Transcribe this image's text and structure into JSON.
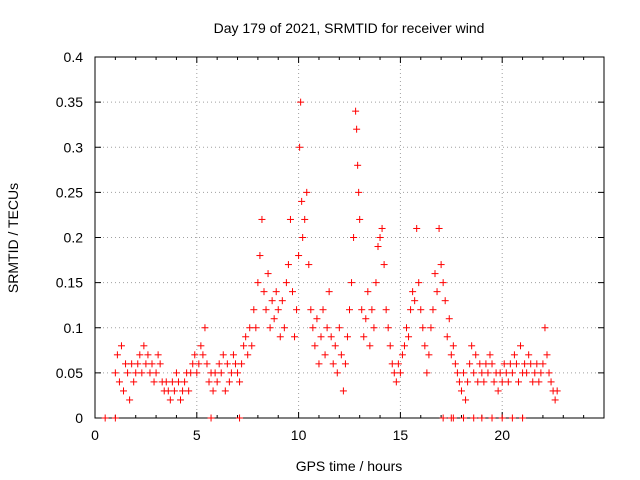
{
  "chart_data": {
    "type": "scatter",
    "title": "Day 179 of 2021, SRMTID for receiver wind",
    "xlabel": "GPS time / hours",
    "ylabel": "SRMTID / TECUs",
    "xlim": [
      0,
      25
    ],
    "ylim": [
      0,
      0.4
    ],
    "xticks": [
      0,
      5,
      10,
      15,
      20
    ],
    "yticks": [
      0,
      0.05,
      0.1,
      0.15,
      0.2,
      0.25,
      0.3,
      0.35,
      0.4
    ],
    "xtick_labels": [
      "0",
      "5",
      "10",
      "15",
      "20"
    ],
    "ytick_labels": [
      "0",
      "0.05",
      "0.1",
      "0.15",
      "0.2",
      "0.25",
      "0.3",
      "0.35",
      "0.4"
    ],
    "grid": true,
    "marker": "plus",
    "color": "#ff0000",
    "series": [
      {
        "points": [
          [
            0.5,
            0.0
          ],
          [
            1.0,
            0.0
          ],
          [
            5.7,
            0.0
          ],
          [
            7.1,
            0.0
          ],
          [
            17.1,
            0.0
          ],
          [
            17.5,
            0.0
          ],
          [
            17.6,
            0.0
          ],
          [
            18.1,
            0.0
          ],
          [
            18.6,
            0.0
          ],
          [
            19.0,
            0.0
          ],
          [
            19.5,
            0.0
          ],
          [
            20.0,
            0.0
          ],
          [
            20.5,
            0.0
          ],
          [
            21.0,
            0.0
          ],
          [
            1.0,
            0.05
          ],
          [
            1.1,
            0.07
          ],
          [
            1.2,
            0.04
          ],
          [
            1.3,
            0.08
          ],
          [
            1.4,
            0.03
          ],
          [
            1.5,
            0.06
          ],
          [
            1.6,
            0.05
          ],
          [
            1.7,
            0.02
          ],
          [
            1.8,
            0.06
          ],
          [
            1.9,
            0.04
          ],
          [
            2.0,
            0.05
          ],
          [
            2.1,
            0.06
          ],
          [
            2.2,
            0.07
          ],
          [
            2.3,
            0.05
          ],
          [
            2.4,
            0.08
          ],
          [
            2.5,
            0.06
          ],
          [
            2.6,
            0.07
          ],
          [
            2.7,
            0.05
          ],
          [
            2.8,
            0.06
          ],
          [
            2.9,
            0.04
          ],
          [
            3.0,
            0.05
          ],
          [
            3.1,
            0.07
          ],
          [
            3.2,
            0.06
          ],
          [
            3.3,
            0.04
          ],
          [
            3.4,
            0.03
          ],
          [
            3.5,
            0.04
          ],
          [
            3.6,
            0.03
          ],
          [
            3.7,
            0.02
          ],
          [
            3.8,
            0.04
          ],
          [
            3.9,
            0.03
          ],
          [
            4.0,
            0.05
          ],
          [
            4.1,
            0.04
          ],
          [
            4.2,
            0.02
          ],
          [
            4.3,
            0.03
          ],
          [
            4.4,
            0.04
          ],
          [
            4.5,
            0.05
          ],
          [
            4.6,
            0.03
          ],
          [
            4.7,
            0.05
          ],
          [
            4.8,
            0.06
          ],
          [
            4.9,
            0.07
          ],
          [
            5.0,
            0.05
          ],
          [
            5.1,
            0.06
          ],
          [
            5.2,
            0.08
          ],
          [
            5.3,
            0.07
          ],
          [
            5.4,
            0.1
          ],
          [
            5.5,
            0.06
          ],
          [
            5.6,
            0.04
          ],
          [
            5.7,
            0.05
          ],
          [
            5.8,
            0.03
          ],
          [
            5.9,
            0.05
          ],
          [
            6.0,
            0.04
          ],
          [
            6.1,
            0.06
          ],
          [
            6.2,
            0.05
          ],
          [
            6.3,
            0.07
          ],
          [
            6.4,
            0.03
          ],
          [
            6.5,
            0.06
          ],
          [
            6.6,
            0.04
          ],
          [
            6.7,
            0.05
          ],
          [
            6.8,
            0.07
          ],
          [
            6.9,
            0.06
          ],
          [
            7.0,
            0.05
          ],
          [
            7.1,
            0.04
          ],
          [
            7.2,
            0.06
          ],
          [
            7.3,
            0.08
          ],
          [
            7.4,
            0.09
          ],
          [
            7.5,
            0.07
          ],
          [
            7.6,
            0.1
          ],
          [
            7.7,
            0.08
          ],
          [
            7.8,
            0.12
          ],
          [
            7.9,
            0.1
          ],
          [
            8.0,
            0.15
          ],
          [
            8.1,
            0.18
          ],
          [
            8.2,
            0.22
          ],
          [
            8.3,
            0.14
          ],
          [
            8.4,
            0.12
          ],
          [
            8.5,
            0.16
          ],
          [
            8.6,
            0.1
          ],
          [
            8.7,
            0.13
          ],
          [
            8.8,
            0.11
          ],
          [
            8.9,
            0.14
          ],
          [
            9.0,
            0.12
          ],
          [
            9.1,
            0.09
          ],
          [
            9.2,
            0.13
          ],
          [
            9.3,
            0.1
          ],
          [
            9.4,
            0.15
          ],
          [
            9.5,
            0.17
          ],
          [
            9.6,
            0.22
          ],
          [
            9.7,
            0.14
          ],
          [
            9.8,
            0.09
          ],
          [
            9.9,
            0.12
          ],
          [
            10.0,
            0.18
          ],
          [
            10.05,
            0.3
          ],
          [
            10.1,
            0.35
          ],
          [
            10.15,
            0.24
          ],
          [
            10.2,
            0.2
          ],
          [
            10.3,
            0.22
          ],
          [
            10.4,
            0.25
          ],
          [
            10.5,
            0.17
          ],
          [
            10.6,
            0.12
          ],
          [
            10.7,
            0.1
          ],
          [
            10.8,
            0.08
          ],
          [
            10.9,
            0.11
          ],
          [
            11.0,
            0.06
          ],
          [
            11.1,
            0.09
          ],
          [
            11.2,
            0.12
          ],
          [
            11.3,
            0.07
          ],
          [
            11.4,
            0.1
          ],
          [
            11.5,
            0.14
          ],
          [
            11.6,
            0.09
          ],
          [
            11.7,
            0.06
          ],
          [
            11.8,
            0.08
          ],
          [
            11.9,
            0.05
          ],
          [
            12.0,
            0.1
          ],
          [
            12.1,
            0.07
          ],
          [
            12.2,
            0.03
          ],
          [
            12.3,
            0.06
          ],
          [
            12.4,
            0.09
          ],
          [
            12.5,
            0.12
          ],
          [
            12.6,
            0.15
          ],
          [
            12.7,
            0.2
          ],
          [
            12.8,
            0.34
          ],
          [
            12.85,
            0.32
          ],
          [
            12.9,
            0.28
          ],
          [
            12.95,
            0.25
          ],
          [
            13.0,
            0.22
          ],
          [
            13.1,
            0.12
          ],
          [
            13.2,
            0.09
          ],
          [
            13.3,
            0.11
          ],
          [
            13.4,
            0.14
          ],
          [
            13.5,
            0.08
          ],
          [
            13.6,
            0.12
          ],
          [
            13.7,
            0.1
          ],
          [
            13.8,
            0.15
          ],
          [
            13.9,
            0.19
          ],
          [
            14.0,
            0.2
          ],
          [
            14.1,
            0.21
          ],
          [
            14.2,
            0.17
          ],
          [
            14.3,
            0.12
          ],
          [
            14.4,
            0.1
          ],
          [
            14.5,
            0.08
          ],
          [
            14.6,
            0.06
          ],
          [
            14.7,
            0.05
          ],
          [
            14.8,
            0.04
          ],
          [
            14.9,
            0.06
          ],
          [
            15.0,
            0.05
          ],
          [
            15.1,
            0.07
          ],
          [
            15.2,
            0.08
          ],
          [
            15.3,
            0.1
          ],
          [
            15.4,
            0.09
          ],
          [
            15.5,
            0.12
          ],
          [
            15.6,
            0.14
          ],
          [
            15.7,
            0.13
          ],
          [
            15.8,
            0.21
          ],
          [
            15.9,
            0.15
          ],
          [
            16.0,
            0.12
          ],
          [
            16.1,
            0.1
          ],
          [
            16.2,
            0.08
          ],
          [
            16.3,
            0.05
          ],
          [
            16.4,
            0.07
          ],
          [
            16.5,
            0.1
          ],
          [
            16.6,
            0.12
          ],
          [
            16.7,
            0.16
          ],
          [
            16.8,
            0.14
          ],
          [
            16.9,
            0.21
          ],
          [
            17.0,
            0.17
          ],
          [
            17.1,
            0.15
          ],
          [
            17.2,
            0.13
          ],
          [
            17.3,
            0.09
          ],
          [
            17.4,
            0.11
          ],
          [
            17.5,
            0.07
          ],
          [
            17.6,
            0.08
          ],
          [
            17.7,
            0.06
          ],
          [
            17.8,
            0.05
          ],
          [
            17.9,
            0.04
          ],
          [
            18.0,
            0.03
          ],
          [
            18.1,
            0.05
          ],
          [
            18.2,
            0.02
          ],
          [
            18.3,
            0.04
          ],
          [
            18.4,
            0.06
          ],
          [
            18.5,
            0.08
          ],
          [
            18.6,
            0.05
          ],
          [
            18.7,
            0.07
          ],
          [
            18.8,
            0.04
          ],
          [
            18.9,
            0.06
          ],
          [
            19.0,
            0.05
          ],
          [
            19.1,
            0.04
          ],
          [
            19.2,
            0.06
          ],
          [
            19.3,
            0.05
          ],
          [
            19.4,
            0.07
          ],
          [
            19.5,
            0.06
          ],
          [
            19.6,
            0.04
          ],
          [
            19.7,
            0.05
          ],
          [
            19.8,
            0.03
          ],
          [
            19.9,
            0.05
          ],
          [
            20.0,
            0.04
          ],
          [
            20.1,
            0.06
          ],
          [
            20.2,
            0.05
          ],
          [
            20.3,
            0.04
          ],
          [
            20.4,
            0.06
          ],
          [
            20.5,
            0.05
          ],
          [
            20.6,
            0.07
          ],
          [
            20.7,
            0.06
          ],
          [
            20.8,
            0.04
          ],
          [
            20.9,
            0.08
          ],
          [
            21.0,
            0.05
          ],
          [
            21.1,
            0.06
          ],
          [
            21.2,
            0.05
          ],
          [
            21.3,
            0.07
          ],
          [
            21.4,
            0.06
          ],
          [
            21.5,
            0.04
          ],
          [
            21.6,
            0.05
          ],
          [
            21.7,
            0.06
          ],
          [
            21.8,
            0.04
          ],
          [
            21.9,
            0.05
          ],
          [
            22.0,
            0.06
          ],
          [
            22.1,
            0.1
          ],
          [
            22.2,
            0.07
          ],
          [
            22.3,
            0.05
          ],
          [
            22.4,
            0.04
          ],
          [
            22.5,
            0.03
          ],
          [
            22.6,
            0.02
          ],
          [
            22.7,
            0.03
          ]
        ]
      }
    ]
  }
}
